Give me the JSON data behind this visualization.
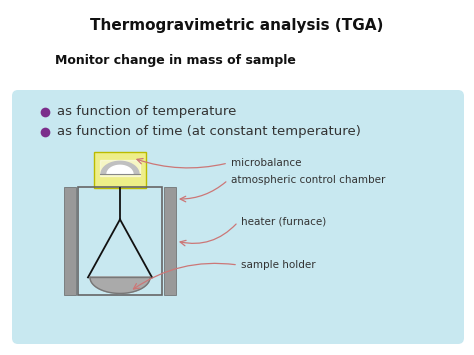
{
  "title": "Thermogravimetric analysis (TGA)",
  "subtitle": "Monitor change in mass of sample",
  "bullet1": "as function of temperature",
  "bullet2": "as function of time (at constant temperature)",
  "label_microbalance": "microbalance",
  "label_chamber": "atmospheric control chamber",
  "label_heater": "heater (furnace)",
  "label_sample": "sample holder",
  "bg_color": "#ffffff",
  "box_bg_top": "#c8e8f0",
  "box_bg_bot": "#a0cce0",
  "title_color": "#111111",
  "subtitle_color": "#111111",
  "bullet_color": "#7b2d8b",
  "text_color": "#333333",
  "balance_box_color": "#eeee88",
  "pillar_color": "#999999",
  "arrow_color": "#cc7777",
  "wire_color": "#111111",
  "pan_color": "#aaaaaa",
  "pan_edge": "#777777",
  "chamber_edge": "#666666"
}
